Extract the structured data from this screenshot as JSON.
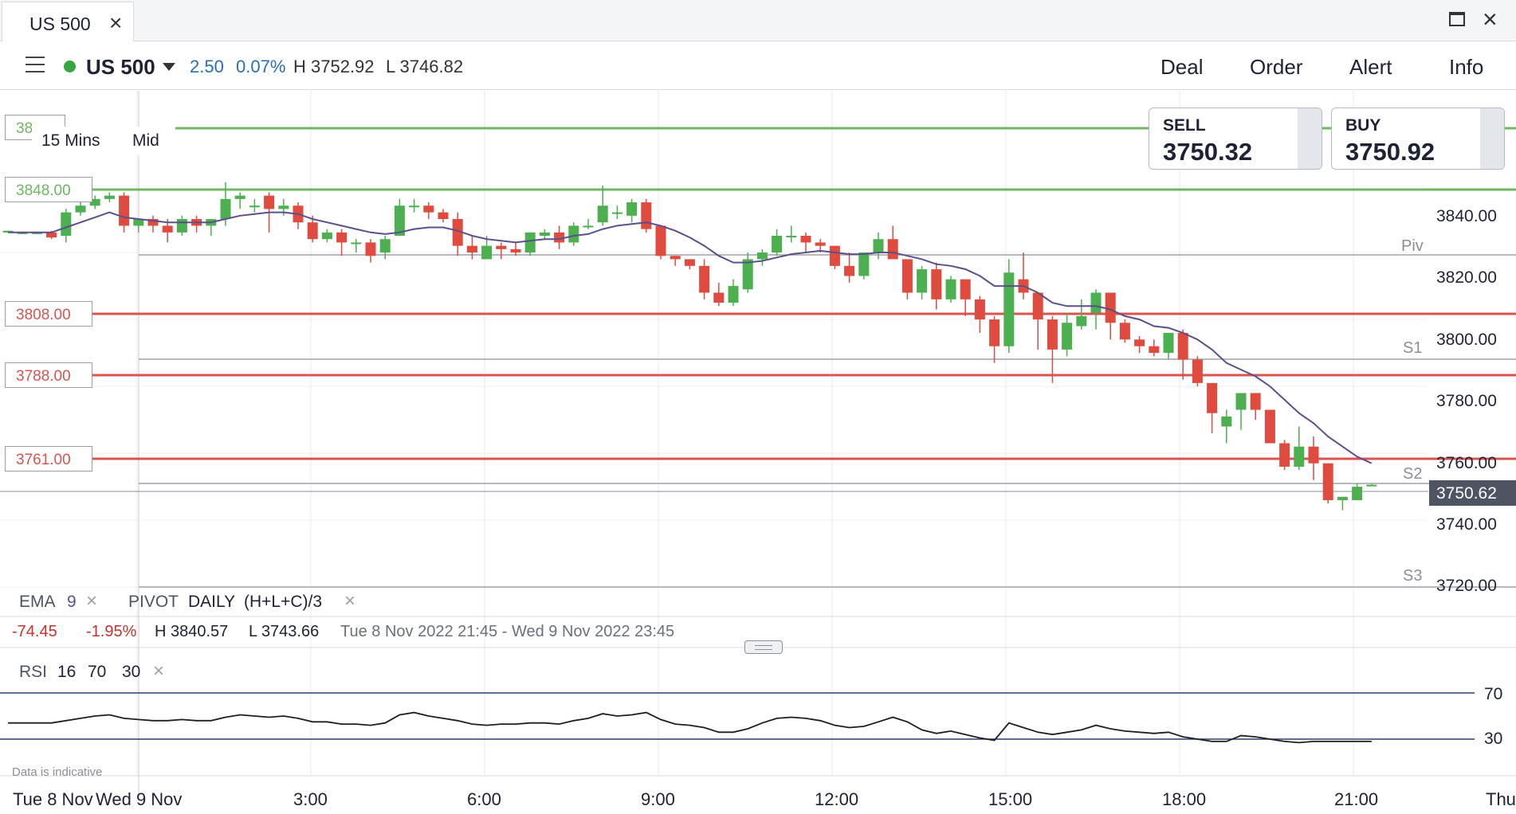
{
  "tab": {
    "title": "US 500"
  },
  "toolbar": {
    "market": "US 500",
    "change": "2.50",
    "change_pct": "0.07%",
    "high": "H 3752.92",
    "low": "L 3746.82",
    "nav": [
      "Deal",
      "Order",
      "Alert",
      "Info"
    ]
  },
  "chart_controls": {
    "timeframe": "15 Mins",
    "price_type": "Mid",
    "hidden_level_fragment": "38"
  },
  "deal": {
    "sell_label": "SELL",
    "sell_price": "3750.32",
    "buy_label": "BUY",
    "buy_price": "3750.92"
  },
  "current_price": "3750.62",
  "levels": [
    {
      "label": "3848.00",
      "price": 3848,
      "color": "#6db861"
    },
    {
      "label": "3808.00",
      "price": 3808,
      "color": "#d9534f"
    },
    {
      "label": "3788.00",
      "price": 3788,
      "color": "#d9534f"
    },
    {
      "label": "3761.00",
      "price": 3761,
      "color": "#d9534f"
    }
  ],
  "pivots": [
    {
      "label": "Piv",
      "price": 3826.5
    },
    {
      "label": "S1",
      "price": 3793
    },
    {
      "label": "S2",
      "price": 3752
    },
    {
      "label": "S3",
      "price": 3720
    }
  ],
  "indicators": {
    "ema_name": "EMA",
    "ema_period": "9",
    "pivot_name": "PIVOT",
    "pivot_period": "DAILY",
    "pivot_formula": "(H+L+C)/3",
    "rsi_name": "RSI",
    "rsi_period": "16",
    "rsi_upper": "70",
    "rsi_lower": "30"
  },
  "stats": {
    "change": "-74.45",
    "change_pct": "-1.95%",
    "high": "H 3840.57",
    "low": "L 3743.66",
    "range": "Tue 8 Nov 2022 21:45 - Wed 9 Nov 2022 23:45"
  },
  "rsi_axis": [
    "70",
    "30"
  ],
  "note": "Data is indicative",
  "colors": {
    "up": "#4caf50",
    "down": "#e04b3f",
    "ema": "#5c4f8a",
    "accent": "#2a6fb0"
  },
  "chart_data": {
    "type": "candlestick",
    "y_ticks": [
      "3840.00",
      "3820.00",
      "3800.00",
      "3780.00",
      "3760.00",
      "3740.00",
      "3720.00"
    ],
    "ylim": [
      3716,
      3845
    ],
    "x_ticks": [
      "Tue 8 Nov",
      "Wed 9 Nov",
      "3:00",
      "6:00",
      "9:00",
      "12:00",
      "15:00",
      "18:00",
      "21:00",
      "Thu"
    ],
    "candles": [
      [
        3826,
        3826.5,
        3826,
        3826.5
      ],
      [
        3826,
        3826,
        3825.5,
        3826
      ],
      [
        3826,
        3826,
        3825.5,
        3826
      ],
      [
        3826,
        3826.5,
        3824,
        3824.5
      ],
      [
        3825,
        3833,
        3823,
        3832
      ],
      [
        3832,
        3835,
        3831,
        3834
      ],
      [
        3834,
        3837,
        3833,
        3836
      ],
      [
        3836,
        3838,
        3835,
        3837
      ],
      [
        3837,
        3838,
        3826,
        3828
      ],
      [
        3828,
        3830,
        3826,
        3830
      ],
      [
        3830,
        3831,
        3826,
        3828
      ],
      [
        3828,
        3830,
        3823,
        3826
      ],
      [
        3826,
        3831,
        3825,
        3830
      ],
      [
        3830,
        3831,
        3826,
        3828
      ],
      [
        3828,
        3830,
        3825,
        3830
      ],
      [
        3830,
        3841,
        3828,
        3836
      ],
      [
        3836,
        3838,
        3833,
        3837
      ],
      [
        3834,
        3836,
        3832,
        3834
      ],
      [
        3837,
        3838,
        3826,
        3833
      ],
      [
        3833,
        3836,
        3831,
        3834
      ],
      [
        3834,
        3835,
        3827,
        3829
      ],
      [
        3829,
        3831,
        3823,
        3824
      ],
      [
        3824,
        3827,
        3823,
        3826
      ],
      [
        3826,
        3827,
        3819,
        3823
      ],
      [
        3823,
        3824,
        3820,
        3823
      ],
      [
        3823,
        3824,
        3817,
        3819
      ],
      [
        3820,
        3825,
        3818,
        3824
      ],
      [
        3825,
        3836,
        3825,
        3834
      ],
      [
        3834,
        3836,
        3832,
        3834
      ],
      [
        3834,
        3835,
        3830,
        3832
      ],
      [
        3832,
        3833,
        3829,
        3830
      ],
      [
        3830,
        3832,
        3819,
        3822
      ],
      [
        3822,
        3825,
        3818,
        3820
      ],
      [
        3818,
        3825,
        3818,
        3822
      ],
      [
        3822,
        3823,
        3818,
        3821
      ],
      [
        3821,
        3823,
        3819,
        3820
      ],
      [
        3820,
        3826,
        3819,
        3826
      ],
      [
        3825,
        3827,
        3824,
        3826
      ],
      [
        3826,
        3828,
        3821,
        3823
      ],
      [
        3823,
        3829,
        3822,
        3828
      ],
      [
        3828,
        3830,
        3827,
        3828
      ],
      [
        3829,
        3840,
        3828,
        3834
      ],
      [
        3832,
        3834,
        3830,
        3832
      ],
      [
        3831,
        3836,
        3829,
        3835
      ],
      [
        3835,
        3836,
        3826,
        3827
      ],
      [
        3828,
        3828,
        3818,
        3819
      ],
      [
        3819,
        3819,
        3816,
        3818
      ],
      [
        3818,
        3818,
        3815,
        3816
      ],
      [
        3816,
        3818,
        3806,
        3808
      ],
      [
        3808,
        3811,
        3804,
        3805
      ],
      [
        3805,
        3812,
        3804,
        3810
      ],
      [
        3809,
        3820,
        3808,
        3818
      ],
      [
        3818,
        3821,
        3816,
        3820
      ],
      [
        3820,
        3827,
        3819,
        3825
      ],
      [
        3825,
        3828,
        3823,
        3825
      ],
      [
        3825,
        3826,
        3820,
        3823
      ],
      [
        3823,
        3824,
        3820,
        3822
      ],
      [
        3822,
        3822,
        3815,
        3816
      ],
      [
        3816,
        3820,
        3811,
        3813
      ],
      [
        3813,
        3820,
        3812,
        3820
      ],
      [
        3820,
        3826,
        3818,
        3824
      ],
      [
        3824,
        3828,
        3818,
        3818
      ],
      [
        3818,
        3818,
        3806,
        3808
      ],
      [
        3808,
        3816,
        3806,
        3815
      ],
      [
        3815,
        3817,
        3803,
        3806
      ],
      [
        3806,
        3813,
        3805,
        3812
      ],
      [
        3812,
        3812,
        3801,
        3806
      ],
      [
        3806,
        3807,
        3796,
        3800
      ],
      [
        3800,
        3801,
        3787,
        3792
      ],
      [
        3792,
        3818,
        3790,
        3814
      ],
      [
        3812,
        3820,
        3806,
        3808
      ],
      [
        3808,
        3808,
        3791,
        3800
      ],
      [
        3800,
        3801,
        3781,
        3791
      ],
      [
        3791,
        3802,
        3789,
        3799
      ],
      [
        3798,
        3806,
        3797,
        3801
      ],
      [
        3802,
        3809,
        3797,
        3808
      ],
      [
        3808,
        3808,
        3794,
        3799
      ],
      [
        3799,
        3800,
        3793,
        3794
      ],
      [
        3794,
        3795,
        3790,
        3792
      ],
      [
        3792,
        3794,
        3789,
        3790
      ],
      [
        3790,
        3796,
        3788,
        3796
      ],
      [
        3796,
        3797,
        3782,
        3788
      ],
      [
        3788,
        3789,
        3780,
        3781
      ],
      [
        3781,
        3781,
        3766,
        3772
      ],
      [
        3768,
        3773,
        3763,
        3771
      ],
      [
        3773,
        3778,
        3767,
        3778
      ],
      [
        3778,
        3778,
        3770,
        3773
      ],
      [
        3773,
        3773,
        3763,
        3763
      ],
      [
        3763,
        3764,
        3755,
        3756
      ],
      [
        3756,
        3768,
        3755,
        3762
      ],
      [
        3762,
        3765,
        3752,
        3757
      ],
      [
        3757,
        3757,
        3745,
        3746
      ],
      [
        3746,
        3746,
        3743,
        3747
      ],
      [
        3746,
        3751,
        3746,
        3750
      ],
      [
        3750.6,
        3750.8,
        3750.4,
        3750.6
      ]
    ],
    "ema": [
      3826,
      3826,
      3826,
      3826,
      3827.5,
      3829,
      3830.5,
      3832,
      3830.5,
      3830,
      3829.5,
      3829,
      3829,
      3829,
      3829,
      3830,
      3831,
      3831.5,
      3832,
      3832,
      3831.5,
      3830,
      3829,
      3828,
      3827,
      3826,
      3825.5,
      3826,
      3827,
      3827.5,
      3827.5,
      3826.5,
      3825,
      3824,
      3823.5,
      3823,
      3823.5,
      3824,
      3824,
      3825,
      3825.5,
      3827,
      3828,
      3828.5,
      3829,
      3828,
      3826.5,
      3824.5,
      3822,
      3819,
      3817,
      3817,
      3817.5,
      3818.5,
      3819.5,
      3820,
      3820.5,
      3820,
      3819.5,
      3819.5,
      3820,
      3820,
      3819,
      3818,
      3816.5,
      3816,
      3815,
      3813,
      3810,
      3810,
      3810,
      3808,
      3805,
      3804,
      3804,
      3804,
      3803,
      3801,
      3800,
      3798,
      3797.5,
      3796,
      3794,
      3791,
      3787,
      3785,
      3783,
      3780,
      3776,
      3772,
      3769,
      3765,
      3762,
      3759,
      3757
    ],
    "rsi": [
      44,
      44,
      44,
      44,
      46,
      48,
      50,
      51,
      48,
      47,
      46,
      46,
      47,
      46,
      46,
      49,
      51,
      50,
      49,
      50,
      48,
      45,
      45,
      43,
      43,
      42,
      44,
      51,
      53,
      50,
      48,
      46,
      43,
      42,
      43,
      43,
      44,
      44,
      43,
      46,
      48,
      52,
      50,
      51,
      53,
      47,
      43,
      42,
      40,
      36,
      36,
      39,
      44,
      48,
      49,
      48,
      46,
      42,
      40,
      41,
      45,
      49,
      45,
      38,
      35,
      37,
      34,
      31,
      29,
      44,
      40,
      36,
      34,
      36,
      38,
      42,
      39,
      37,
      36,
      35,
      36,
      32,
      30,
      28,
      28,
      33,
      32,
      30,
      28,
      27,
      28,
      28,
      28,
      28,
      28
    ],
    "rsi_range": [
      0,
      100
    ],
    "rsi_levels": [
      70,
      30
    ]
  }
}
